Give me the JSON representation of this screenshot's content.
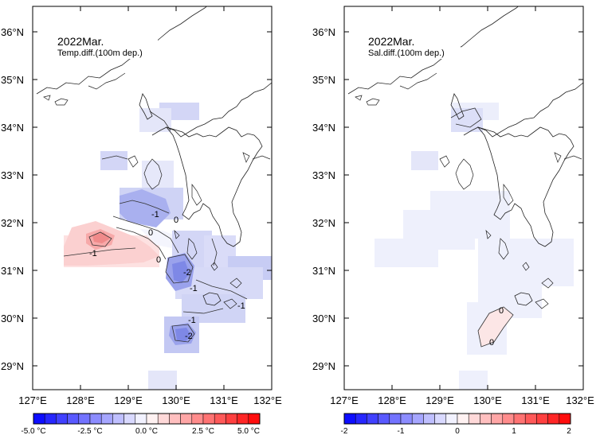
{
  "panels": [
    {
      "title": "2022Mar.",
      "subtitle": "Temp.diff.(100m dep.)",
      "contour_labels": [
        "-1",
        "0",
        "0",
        "-1",
        "0",
        "-2",
        "-1",
        "-1",
        "-1",
        "-2"
      ],
      "colorbar": {
        "min": -5.0,
        "max": 5.0,
        "tick_labels": [
          "-5.0 °C",
          "-2.5 °C",
          "0.0 °C",
          "2.5 °C",
          "5.0 °C"
        ]
      }
    },
    {
      "title": "2022Mar.",
      "subtitle": "Sal.diff.(100m dep.)",
      "contour_labels": [
        "0",
        "0"
      ],
      "colorbar": {
        "min": -2,
        "max": 2,
        "tick_labels": [
          "-2",
          "-1",
          "0",
          "1",
          "2"
        ]
      }
    }
  ],
  "lat_labels": [
    "36°N",
    "35°N",
    "34°N",
    "33°N",
    "32°N",
    "31°N",
    "30°N",
    "29°N"
  ],
  "lon_labels": [
    "127°E",
    "128°E",
    "129°E",
    "130°E",
    "131°E",
    "132°E"
  ],
  "colors": {
    "cold_max": "#0000ff",
    "warm_max": "#ff0000",
    "neutral": "#ffffff",
    "coast": "#222222"
  }
}
